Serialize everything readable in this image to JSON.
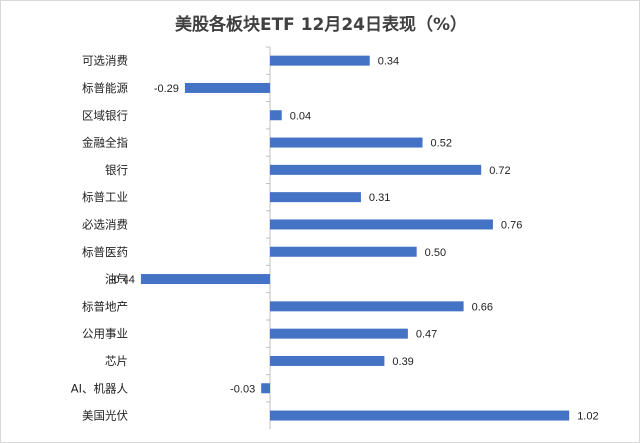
{
  "chart_data": {
    "type": "bar",
    "orientation": "horizontal",
    "title": "美股各板块ETF  12月24日表现（%）",
    "categories": [
      "可选消费",
      "标普能源",
      "区域银行",
      "金融全指",
      "银行",
      "标普工业",
      "必选消费",
      "标普医药",
      "油气",
      "标普地产",
      "公用事业",
      "芯片",
      "AI、机器人",
      "美国光伏"
    ],
    "values": [
      0.34,
      -0.29,
      0.04,
      0.52,
      0.72,
      0.31,
      0.76,
      0.5,
      -0.44,
      0.66,
      0.47,
      0.39,
      -0.03,
      1.02
    ],
    "value_labels": [
      "0.34",
      "-0.29",
      "0.04",
      "0.52",
      "0.72",
      "0.31",
      "0.76",
      "0.50",
      "-0.44",
      "0.66",
      "0.47",
      "0.39",
      "-0.03",
      "1.02"
    ],
    "xlim": [
      -0.45,
      1.05
    ],
    "bar_color": "#4472c4",
    "grid": false,
    "legend": "none"
  }
}
